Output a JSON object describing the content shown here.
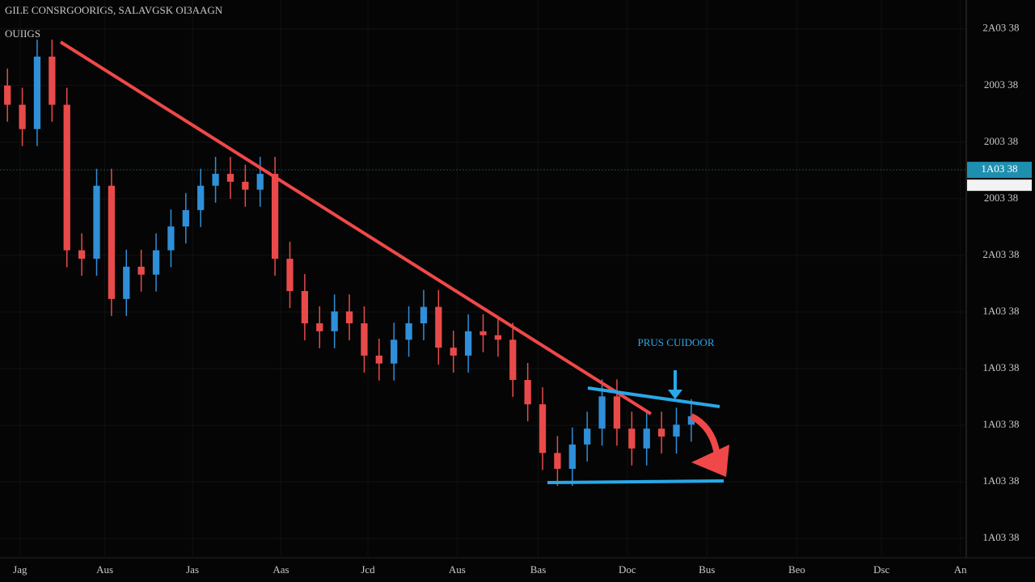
{
  "chart_data": {
    "type": "candlestick",
    "title": "GILE CONSRGOORIGS, SALAVGSK OI3AAGN",
    "subtitle": "OUIIGS",
    "annotation": "PRUS CUIDOOR",
    "up_color": "#2f8fd8",
    "down_color": "#e84a4a",
    "grid": true,
    "xlim": [
      0,
      130
    ],
    "ylim": [
      0.66,
      10.51
    ],
    "xticks": [
      {
        "value": 2.7,
        "label": "Jag"
      },
      {
        "value": 14.1,
        "label": "Aus"
      },
      {
        "value": 25.9,
        "label": "Jas"
      },
      {
        "value": 37.8,
        "label": "Aas"
      },
      {
        "value": 49.5,
        "label": "Jcd"
      },
      {
        "value": 61.5,
        "label": "Aus"
      },
      {
        "value": 72.4,
        "label": "Bas"
      },
      {
        "value": 84.4,
        "label": "Doc"
      },
      {
        "value": 95.1,
        "label": "Bus"
      },
      {
        "value": 107.2,
        "label": "Beo"
      },
      {
        "value": 118.6,
        "label": "Dsc"
      },
      {
        "value": 129.2,
        "label": "An"
      }
    ],
    "yticks": [
      {
        "value": 10,
        "label": "2A03 38"
      },
      {
        "value": 9,
        "label": "2003 38"
      },
      {
        "value": 8,
        "label": "2003 38"
      },
      {
        "value": 7,
        "label": "2003 38"
      },
      {
        "value": 6,
        "label": "2A03 38"
      },
      {
        "value": 5,
        "label": "1A03 38"
      },
      {
        "value": 4,
        "label": "1A03 38"
      },
      {
        "value": 3,
        "label": "1A03 38"
      },
      {
        "value": 2,
        "label": "1A03 38"
      },
      {
        "value": 1,
        "label": "1A03 38"
      }
    ],
    "last_price": {
      "value": 7.51,
      "label": "1A03 38"
    },
    "x": [
      1,
      3,
      5,
      7,
      9,
      11,
      13,
      15,
      17,
      19,
      21,
      23,
      25,
      27,
      29,
      31,
      33,
      35,
      37,
      39,
      41,
      43,
      45,
      47,
      49,
      51,
      53,
      55,
      57,
      59,
      61,
      63,
      65,
      67,
      69,
      71,
      73,
      75,
      77,
      79,
      81,
      83,
      85,
      87,
      89,
      91,
      93
    ],
    "open": [
      9.0,
      8.66,
      8.23,
      9.51,
      8.66,
      6.09,
      5.94,
      7.23,
      5.23,
      5.8,
      5.66,
      6.09,
      6.51,
      6.8,
      7.23,
      7.44,
      7.3,
      7.16,
      7.44,
      5.94,
      5.37,
      4.8,
      4.66,
      5.01,
      4.8,
      4.23,
      4.09,
      4.51,
      4.8,
      5.09,
      4.37,
      4.23,
      4.66,
      4.59,
      4.51,
      3.8,
      3.37,
      2.51,
      2.23,
      2.66,
      2.94,
      3.51,
      2.94,
      2.59,
      2.94,
      2.8,
      3.01
    ],
    "high": [
      9.3,
      8.96,
      9.81,
      9.81,
      8.96,
      6.39,
      7.53,
      7.53,
      6.1,
      6.1,
      6.39,
      6.81,
      7.1,
      7.53,
      7.74,
      7.74,
      7.6,
      7.74,
      7.74,
      6.24,
      5.67,
      5.1,
      5.31,
      5.31,
      5.1,
      4.53,
      4.81,
      5.1,
      5.39,
      5.39,
      4.67,
      4.96,
      4.96,
      4.89,
      4.81,
      4.1,
      3.67,
      2.81,
      2.96,
      3.24,
      3.81,
      3.81,
      3.24,
      3.24,
      3.24,
      3.31,
      3.46
    ],
    "low": [
      8.36,
      7.93,
      7.93,
      8.36,
      5.79,
      5.64,
      5.64,
      4.93,
      4.93,
      5.36,
      5.36,
      5.79,
      6.21,
      6.5,
      6.93,
      7.0,
      6.86,
      6.86,
      5.64,
      5.07,
      4.5,
      4.36,
      4.36,
      4.5,
      3.93,
      3.79,
      3.79,
      4.21,
      4.5,
      4.07,
      3.93,
      3.93,
      4.29,
      4.21,
      3.5,
      3.07,
      2.21,
      1.93,
      1.93,
      2.36,
      2.64,
      2.64,
      2.29,
      2.29,
      2.5,
      2.5,
      2.71
    ],
    "close": [
      8.66,
      8.23,
      9.51,
      8.66,
      6.09,
      5.94,
      7.23,
      5.23,
      5.8,
      5.66,
      6.09,
      6.51,
      6.8,
      7.23,
      7.44,
      7.3,
      7.16,
      7.44,
      5.94,
      5.37,
      4.8,
      4.66,
      5.01,
      4.8,
      4.23,
      4.09,
      4.51,
      4.8,
      5.09,
      4.37,
      4.23,
      4.66,
      4.59,
      4.51,
      3.8,
      3.37,
      2.51,
      2.23,
      2.66,
      2.94,
      3.51,
      2.94,
      2.59,
      2.94,
      2.8,
      3.01,
      3.16
    ]
  }
}
